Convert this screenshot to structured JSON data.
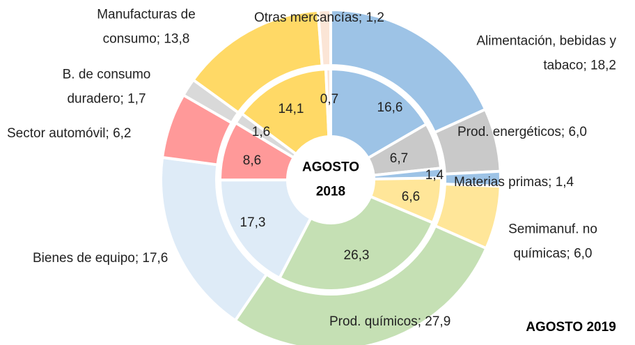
{
  "chart_data": {
    "type": "donut",
    "colors": [
      "#9dc3e6",
      "#c9c9c9",
      "#9dc3e6",
      "#ffe699",
      "#c5e0b4",
      "#deebf7",
      "#ff9999",
      "#d9d9d9",
      "#ffd966",
      "#fbe5d6"
    ],
    "series": [
      {
        "name": "AGOSTO 2019",
        "values": [
          18.2,
          6.0,
          1.4,
          6.0,
          27.9,
          17.6,
          6.2,
          1.7,
          13.8,
          1.2
        ],
        "value_labels": [
          "Alimentación, bebidas y\ntabaco; 18,2",
          "Prod. energéticos; 6,0",
          "Materias primas; 1,4",
          "Semimanuf. no\nquímicas; 6,0",
          "Prod. químicos; 27,9",
          "Bienes de equipo; 17,6",
          "Sector automóvil; 6,2",
          "B. de consumo\nduradero; 1,7",
          "Manufacturas de\nconsumo; 13,8",
          "Otras mercancías; 1,2"
        ]
      },
      {
        "name": "AGOSTO\n2018",
        "values": [
          16.6,
          6.7,
          1.4,
          6.6,
          26.3,
          17.3,
          8.6,
          1.6,
          14.1,
          0.7
        ],
        "value_labels": [
          "16,6",
          "6,7",
          "1,4",
          "6,6",
          "26,3",
          "17,3",
          "8,6",
          "1,6",
          "14,1",
          "0,7"
        ]
      }
    ]
  }
}
